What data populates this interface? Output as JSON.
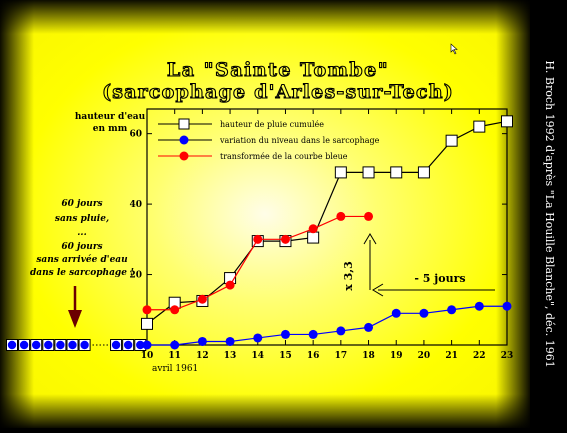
{
  "title": {
    "line1": "La \"Sainte Tombe\"",
    "line2": "(sarcophage d'Arles-sur-Tech)"
  },
  "side_credit": "H. Broch 1992 d'après \"La Houille Blanche\", déc. 1961",
  "left_note": [
    "60 jours",
    "sans pluie,",
    "...",
    "60 jours",
    "sans arrivée d'eau",
    "dans le sarcophage !"
  ],
  "annotations": {
    "factor": "x 3,3",
    "shift": "- 5 jours"
  },
  "colors": {
    "background_center": "#fffbe0",
    "background_mid": "#ffff00",
    "frame": "#000000",
    "rain": "#ffffff",
    "level": "#0000ff",
    "transformed": "#ff0000",
    "arrow": "#6b0000",
    "title": "#000000"
  },
  "chart_data": {
    "type": "line",
    "ylabel": [
      "hauteur d'eau",
      "en mm"
    ],
    "xlabel": "avril 1961",
    "x_ticks": [
      10,
      11,
      12,
      13,
      14,
      15,
      16,
      17,
      18,
      19,
      20,
      21,
      22,
      23
    ],
    "y_ticks": [
      20,
      40,
      60
    ],
    "xlim": [
      10,
      23
    ],
    "ylim": [
      0,
      67
    ],
    "grid": false,
    "legend_position": "top",
    "series": [
      {
        "name": "hauteur de pluie cumulée",
        "marker": "square",
        "color": "#ffffff",
        "x": [
          10,
          11,
          12,
          13,
          14,
          15,
          16,
          17,
          18,
          19,
          20,
          21,
          22,
          23
        ],
        "y": [
          6,
          12,
          12.5,
          19,
          29.5,
          29.5,
          30.5,
          49,
          49,
          49,
          49,
          58,
          62,
          63.5
        ]
      },
      {
        "name": "variation du niveau dans le sarcophage",
        "marker": "circle",
        "color": "#0000ff",
        "x": [
          10,
          11,
          12,
          13,
          14,
          15,
          16,
          17,
          18,
          19,
          20,
          21,
          22,
          23
        ],
        "y": [
          0,
          0,
          1,
          1,
          2,
          3,
          3,
          4,
          5,
          9,
          9,
          10,
          11,
          11
        ]
      },
      {
        "name": "transformée de la courbe bleue",
        "marker": "circle",
        "color": "#ff0000",
        "x": [
          10,
          11,
          12,
          13,
          14,
          15,
          16,
          17,
          18
        ],
        "y": [
          10,
          10,
          13,
          17,
          30,
          30,
          33,
          36.5,
          36.5
        ]
      }
    ],
    "prior_days_markers": 10
  }
}
